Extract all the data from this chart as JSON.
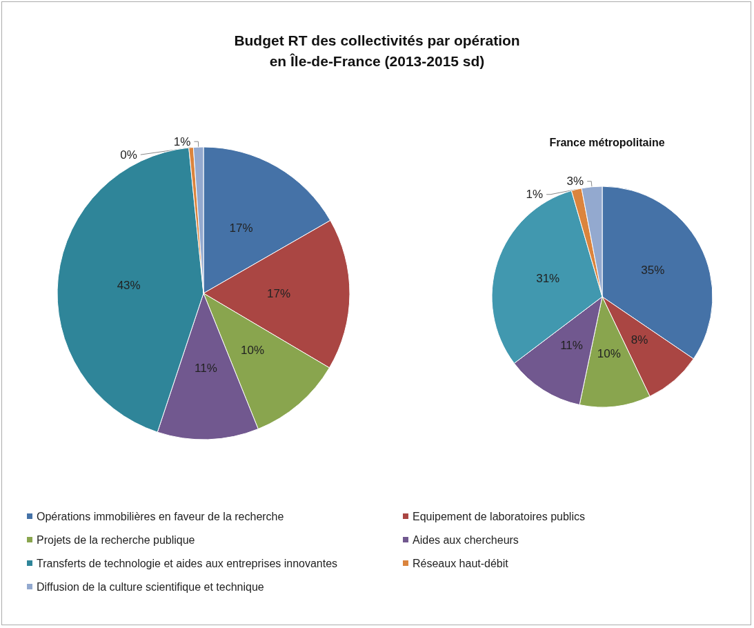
{
  "chart_data": [
    {
      "type": "pie",
      "title": "Budget RT des collectivités par opération\nen Île-de-France (2013-2015 sd)",
      "categories": [
        "Opérations immobilières en faveur de la recherche",
        "Equipement de laboratoires publics",
        "Projets de la recherche publique",
        "Aides aux chercheurs",
        "Transferts de technologie et aides aux entreprises innovantes",
        "Réseaux haut-débit",
        "Diffusion de la culture scientifique et technique"
      ],
      "values": [
        16.7,
        16.8,
        10.4,
        11.2,
        43.3,
        0.5,
        1.1
      ],
      "value_labels": [
        "17%",
        "17%",
        "10%",
        "11%",
        "43%",
        "0%",
        "1%"
      ],
      "colors": [
        "#4572a7",
        "#aa4643",
        "#89a54e",
        "#71588f",
        "#2f8599",
        "#db843d",
        "#93a9cf"
      ],
      "legend": "bottom"
    },
    {
      "type": "pie",
      "title": "France métropolitaine",
      "categories": [
        null,
        null,
        null,
        null,
        null,
        null,
        null
      ],
      "values": [
        34.5,
        8.4,
        10.4,
        11.4,
        30.8,
        1.5,
        3.0
      ],
      "value_labels": [
        "35%",
        "8%",
        "10%",
        "11%",
        "31%",
        "1%",
        "3%"
      ],
      "colors": [
        "#4572a7",
        "#aa4643",
        "#89a54e",
        "#71588f",
        "#4198af",
        "#db843d",
        "#93a9cf"
      ]
    }
  ]
}
